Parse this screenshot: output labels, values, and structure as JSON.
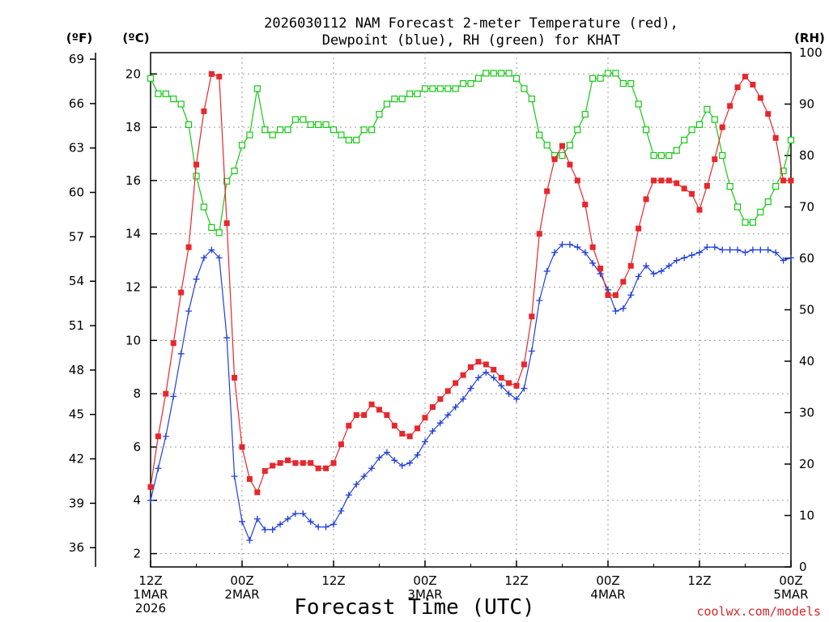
{
  "title_line1": "2026030112 NAM Forecast 2-meter Temperature (red),",
  "title_line2": "Dewpoint (blue), RH (green) for KHAT",
  "unit_f": "(ºF)",
  "unit_c": "(ºC)",
  "unit_rh": "(RH)",
  "xlabel": "Forecast Time (UTC)",
  "credit": "coolwx.com/models",
  "x_ticks": [
    {
      "hour": 0,
      "l1": "12Z",
      "l2": "1MAR",
      "l3": "2026"
    },
    {
      "hour": 12,
      "l1": "00Z",
      "l2": "2MAR",
      "l3": ""
    },
    {
      "hour": 24,
      "l1": "12Z",
      "l2": "",
      "l3": ""
    },
    {
      "hour": 36,
      "l1": "00Z",
      "l2": "3MAR",
      "l3": ""
    },
    {
      "hour": 48,
      "l1": "12Z",
      "l2": "",
      "l3": ""
    },
    {
      "hour": 60,
      "l1": "00Z",
      "l2": "4MAR",
      "l3": ""
    },
    {
      "hour": 72,
      "l1": "12Z",
      "l2": "",
      "l3": ""
    },
    {
      "hour": 84,
      "l1": "00Z",
      "l2": "5MAR",
      "l3": ""
    }
  ],
  "f_ticks": [
    "36",
    "39",
    "42",
    "45",
    "48",
    "51",
    "54",
    "57",
    "60",
    "63",
    "66",
    "69"
  ],
  "c_ticks": [
    "2",
    "4",
    "6",
    "8",
    "10",
    "12",
    "14",
    "16",
    "18",
    "20"
  ],
  "rh_ticks": [
    "0",
    "10",
    "20",
    "30",
    "40",
    "50",
    "60",
    "70",
    "80",
    "90",
    "100"
  ],
  "colors": {
    "temperature": "#e8262b",
    "dewpoint": "#1f3fdc",
    "rh": "#14c814",
    "grid": "#999999"
  },
  "chart_data": {
    "type": "line",
    "x_unit": "forecast hour from 2026-03-01 12Z",
    "x": [
      0,
      1,
      2,
      3,
      4,
      5,
      6,
      7,
      8,
      9,
      10,
      11,
      12,
      13,
      14,
      15,
      16,
      17,
      18,
      19,
      20,
      21,
      22,
      23,
      24,
      25,
      26,
      27,
      28,
      29,
      30,
      31,
      32,
      33,
      34,
      35,
      36,
      37,
      38,
      39,
      40,
      41,
      42,
      43,
      44,
      45,
      46,
      47,
      48,
      49,
      50,
      51,
      52,
      53,
      54,
      55,
      56,
      57,
      58,
      59,
      60,
      61,
      62,
      63,
      64,
      65,
      66,
      67,
      68,
      69,
      70,
      71,
      72,
      73,
      74,
      75,
      76,
      77,
      78,
      79,
      80,
      81,
      82,
      83,
      84
    ],
    "xlim": [
      0,
      84
    ],
    "left_axis": {
      "label": "(ºC)",
      "ylim": [
        1.5,
        20.8
      ]
    },
    "right_axis": {
      "label": "(RH)",
      "ylim": [
        0,
        100
      ]
    },
    "grid": true,
    "series": [
      {
        "name": "Temperature",
        "axis": "left",
        "marker": "square-filled",
        "values": [
          4.5,
          6.4,
          8.0,
          9.9,
          11.8,
          13.5,
          16.6,
          18.6,
          20.0,
          19.9,
          14.4,
          8.6,
          6.0,
          4.8,
          4.3,
          5.1,
          5.3,
          5.4,
          5.5,
          5.4,
          5.4,
          5.4,
          5.2,
          5.2,
          5.4,
          6.1,
          6.8,
          7.2,
          7.2,
          7.6,
          7.4,
          7.2,
          6.8,
          6.5,
          6.4,
          6.7,
          7.1,
          7.5,
          7.8,
          8.1,
          8.4,
          8.7,
          9.0,
          9.2,
          9.1,
          8.9,
          8.6,
          8.4,
          8.3,
          9.1,
          10.9,
          14.0,
          15.6,
          16.8,
          17.3,
          16.6,
          16.0,
          15.1,
          13.5,
          12.7,
          11.7,
          11.7,
          12.2,
          12.8,
          14.2,
          15.3,
          16.0,
          16.0,
          16.0,
          15.9,
          15.7,
          15.5,
          14.9,
          15.8,
          16.8,
          18.0,
          18.8,
          19.5,
          19.9,
          19.6,
          19.1,
          18.5,
          17.6,
          16.0,
          16.0
        ]
      },
      {
        "name": "Dewpoint",
        "axis": "left",
        "marker": "plus",
        "values": [
          4.0,
          5.2,
          6.4,
          7.9,
          9.5,
          11.1,
          12.3,
          13.1,
          13.4,
          13.1,
          10.1,
          4.9,
          3.2,
          2.5,
          3.3,
          2.9,
          2.9,
          3.1,
          3.3,
          3.5,
          3.5,
          3.2,
          3.0,
          3.0,
          3.1,
          3.6,
          4.2,
          4.6,
          4.9,
          5.2,
          5.6,
          5.8,
          5.5,
          5.3,
          5.4,
          5.7,
          6.2,
          6.6,
          6.9,
          7.2,
          7.5,
          7.8,
          8.2,
          8.6,
          8.8,
          8.6,
          8.3,
          8.0,
          7.8,
          8.2,
          9.6,
          11.5,
          12.6,
          13.3,
          13.6,
          13.6,
          13.5,
          13.3,
          12.9,
          12.5,
          11.9,
          11.1,
          11.2,
          11.7,
          12.4,
          12.8,
          12.5,
          12.6,
          12.8,
          13.0,
          13.1,
          13.2,
          13.3,
          13.5,
          13.5,
          13.4,
          13.4,
          13.4,
          13.3,
          13.4,
          13.4,
          13.4,
          13.3,
          13.0,
          13.1
        ]
      },
      {
        "name": "RH",
        "axis": "right",
        "marker": "square-open",
        "values": [
          95,
          92,
          92,
          91,
          90,
          86,
          76,
          70,
          66,
          65,
          75,
          77,
          82,
          84,
          93,
          85,
          84,
          85,
          85,
          87,
          87,
          86,
          86,
          86,
          85,
          84,
          83,
          83,
          85,
          85,
          88,
          90,
          91,
          91,
          92,
          92,
          93,
          93,
          93,
          93,
          93,
          94,
          94,
          95,
          96,
          96,
          96,
          96,
          95,
          93,
          91,
          84,
          82,
          80,
          80,
          82,
          85,
          88,
          95,
          95,
          96,
          96,
          94,
          94,
          90,
          85,
          80,
          80,
          80,
          81,
          83,
          85,
          86,
          89,
          87,
          80,
          74,
          70,
          67,
          67,
          69,
          71,
          74,
          77,
          83
        ]
      }
    ]
  }
}
